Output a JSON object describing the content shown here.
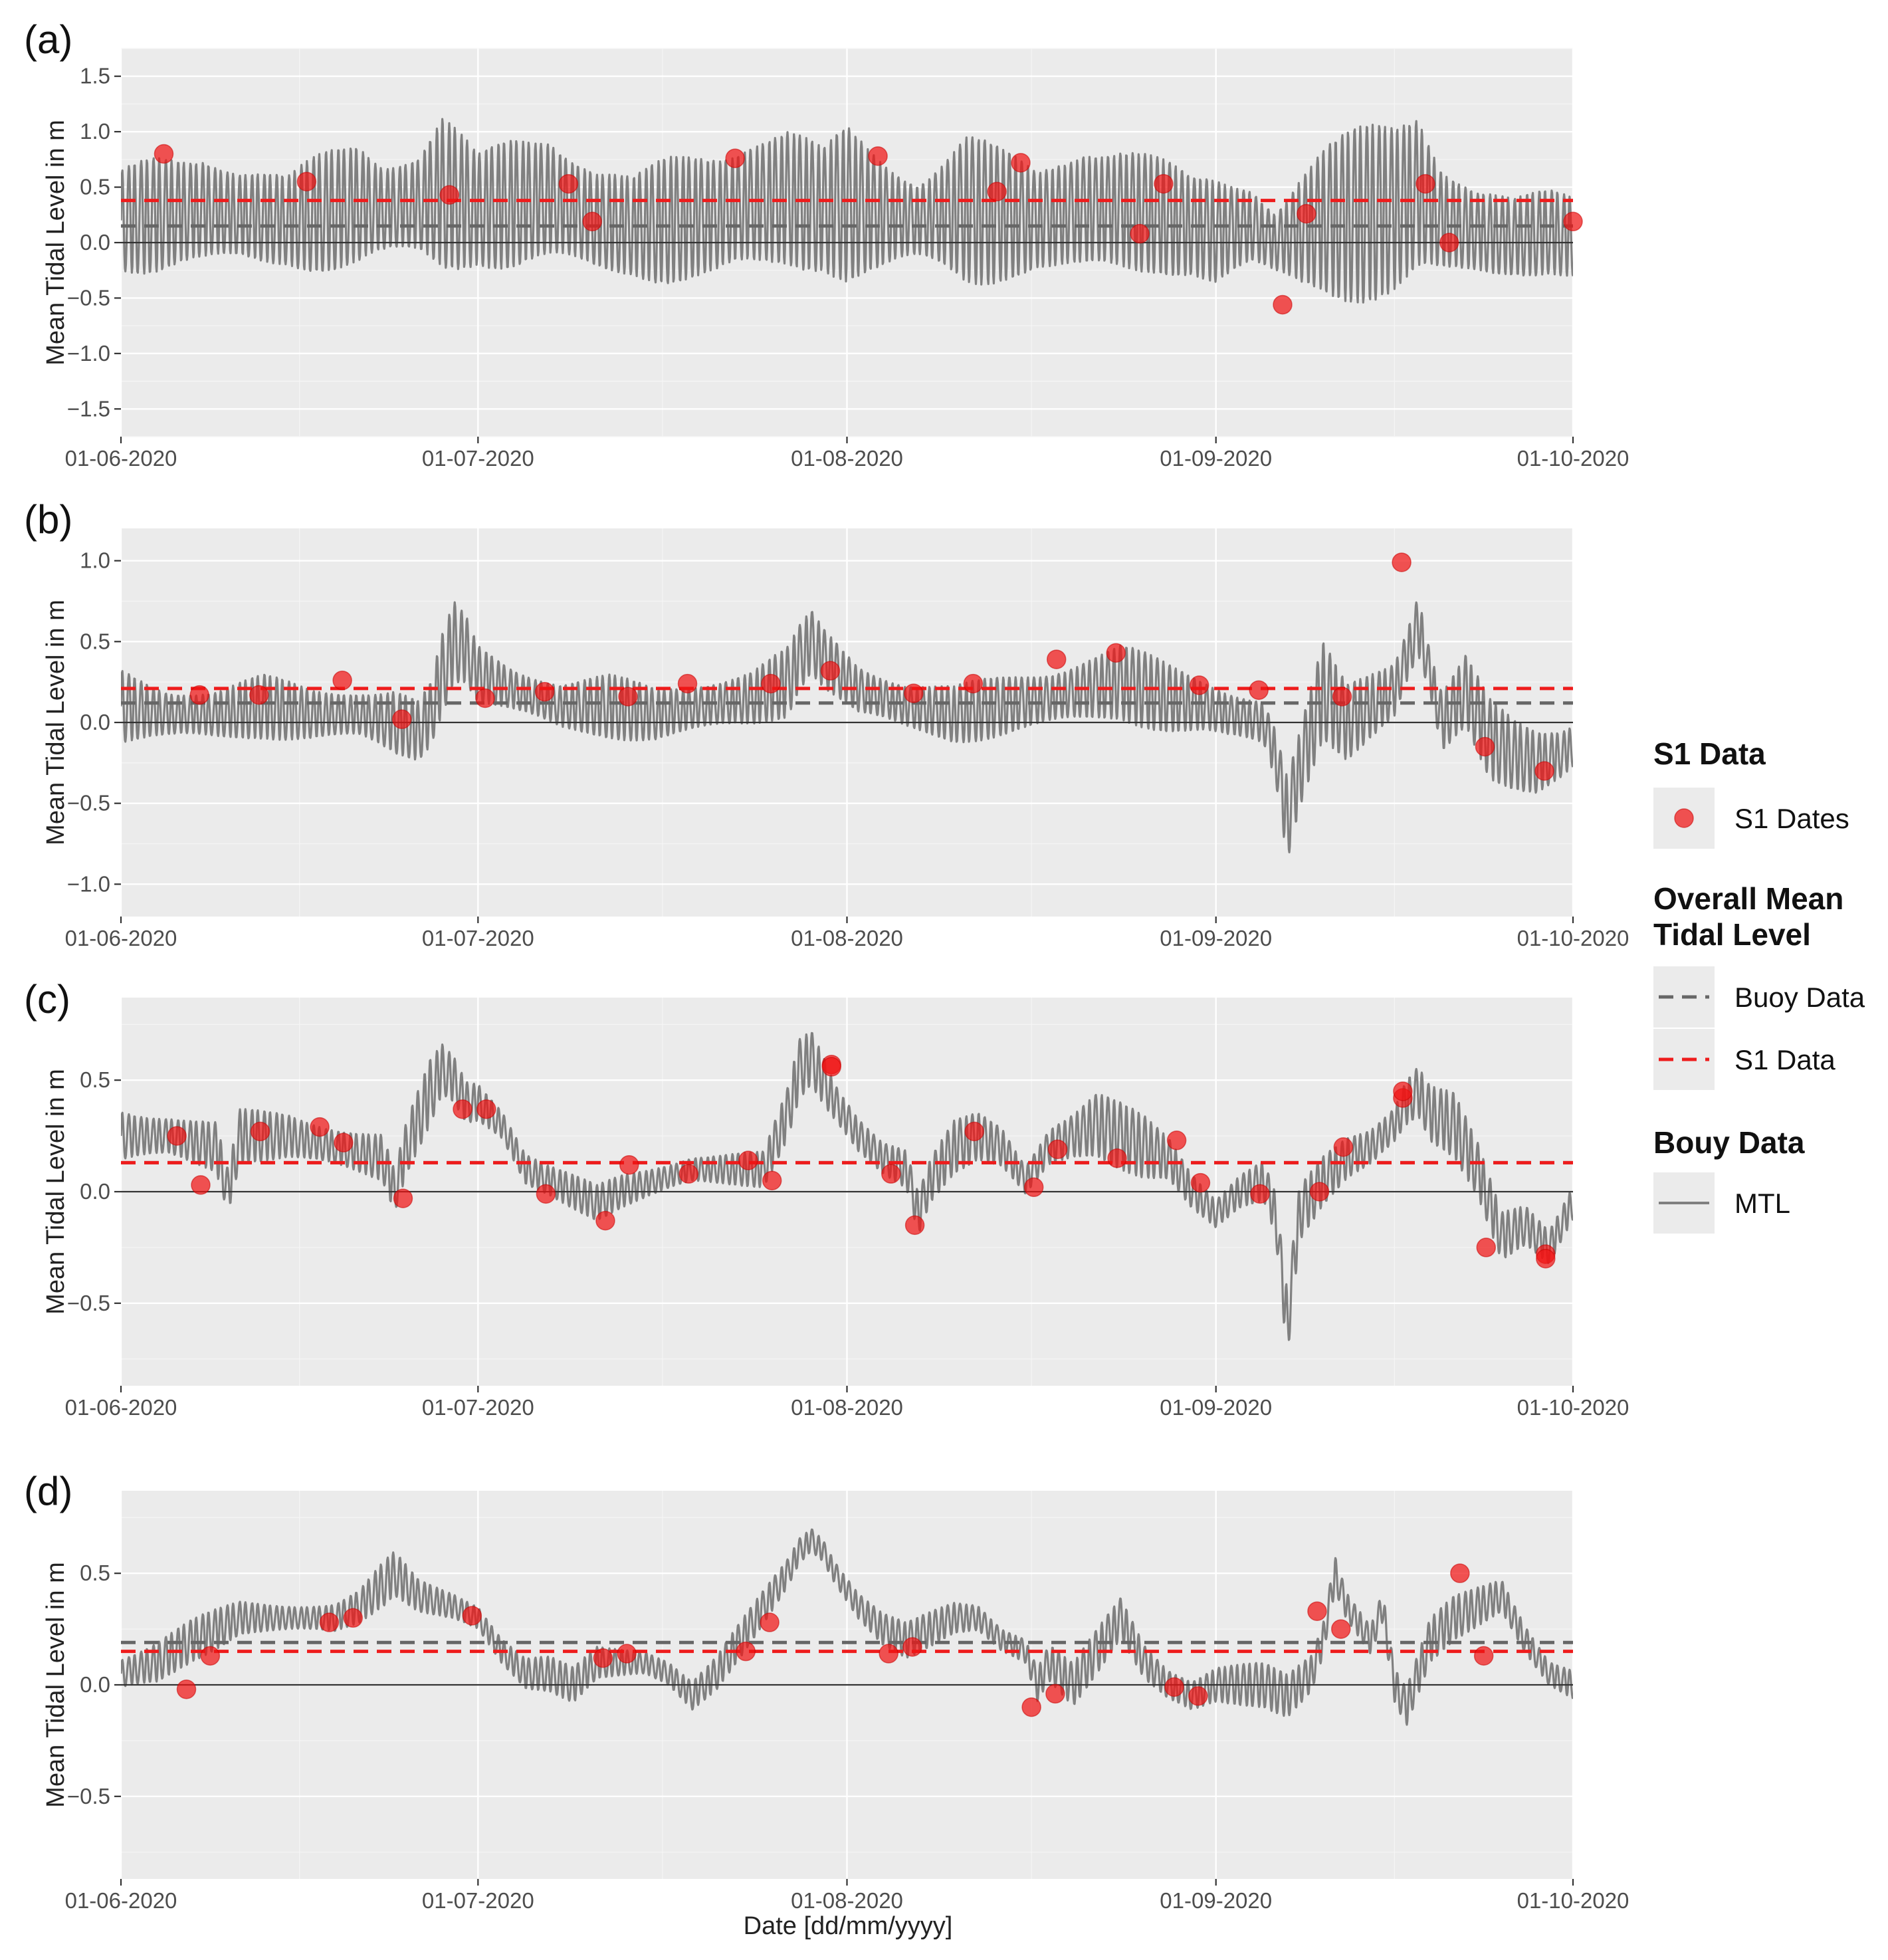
{
  "figure": {
    "x_axis_title": "Date [dd/mm/yyyy]",
    "y_axis_title": "Mean Tidal Level in m"
  },
  "legend": {
    "s1_data_title": "S1 Data",
    "s1_dates_label": "S1 Dates",
    "overall_title_line1": "Overall Mean",
    "overall_title_line2": "Tidal Level",
    "buoy_data_label": "Buoy Data",
    "s1_data_label": "S1 Data",
    "bouy_data_title": "Bouy Data",
    "mtl_label": "MTL"
  },
  "colors": {
    "mtl_line": "#808080",
    "buoy_mean": "#666666",
    "s1_mean": "#ee1c1c",
    "s1_points": "#f01414",
    "panel_background": "#ebebeb"
  },
  "chart_data": [
    {
      "panel": "(a)",
      "type": "line",
      "title": "",
      "xlabel": "",
      "ylabel": "Mean Tidal Level in m",
      "xlim": [
        0,
        122
      ],
      "x_tick_labels": [
        "01-06-2020",
        "01-07-2020",
        "01-08-2020",
        "01-09-2020",
        "01-10-2020"
      ],
      "x_tick_days": [
        0,
        30,
        61,
        92,
        122
      ],
      "ylim": [
        -1.75,
        1.75
      ],
      "y_ticks": [
        -1.5,
        -1.0,
        -0.5,
        0.0,
        0.5,
        1.0,
        1.5
      ],
      "y_tick_labels": [
        "−1.5",
        "−1.0",
        "−0.5",
        "0.0",
        "0.5",
        "1.0",
        "1.5"
      ],
      "buoy_overall_mean": 0.15,
      "s1_overall_mean": 0.38,
      "mtl_series": {
        "name": "MTL",
        "sampling": "hourly tidal signal reconstructed from envelope",
        "semidiurnal_period_days": 0.5175,
        "envelope": {
          "days": [
            0,
            3,
            7,
            10,
            14,
            18,
            20,
            22,
            25,
            27,
            30,
            33,
            36,
            40,
            43,
            46,
            50,
            53,
            56,
            59,
            61,
            64,
            67,
            71,
            74,
            77,
            81,
            84,
            87,
            90,
            92,
            95,
            97,
            99,
            101,
            104,
            107,
            109,
            111,
            114,
            117,
            120,
            122
          ],
          "mean": [
            0.2,
            0.25,
            0.3,
            0.25,
            0.2,
            0.3,
            0.35,
            0.3,
            0.35,
            0.45,
            0.3,
            0.35,
            0.4,
            0.2,
            0.15,
            0.2,
            0.25,
            0.35,
            0.4,
            0.3,
            0.35,
            0.25,
            0.2,
            0.3,
            0.25,
            0.2,
            0.3,
            0.3,
            0.25,
            0.15,
            0.1,
            0.15,
            0.0,
            0.1,
            0.2,
            0.25,
            0.3,
            0.45,
            0.2,
            0.1,
            0.05,
            0.1,
            0.05
          ],
          "amp": [
            0.45,
            0.6,
            0.7,
            0.5,
            0.4,
            0.65,
            0.75,
            0.6,
            0.55,
            0.75,
            0.5,
            0.7,
            0.8,
            0.55,
            0.45,
            0.6,
            0.75,
            0.8,
            0.7,
            0.55,
            0.75,
            0.65,
            0.5,
            0.75,
            0.6,
            0.5,
            0.8,
            0.7,
            0.55,
            0.45,
            0.55,
            0.5,
            0.4,
            0.6,
            0.7,
            0.8,
            0.9,
            1.0,
            0.7,
            0.45,
            0.35,
            0.4,
            0.45
          ]
        }
      },
      "s1_dates": {
        "name": "S1 Dates",
        "days": [
          3.6,
          15.6,
          27.6,
          37.6,
          39.6,
          51.6,
          63.6,
          73.6,
          75.6,
          85.6,
          87.6,
          97.6,
          99.6,
          109.6,
          111.6,
          122.0
        ],
        "values": [
          0.8,
          0.55,
          0.43,
          0.53,
          0.19,
          0.76,
          0.78,
          0.46,
          0.72,
          0.08,
          0.53,
          -0.56,
          0.26,
          0.53,
          0.0,
          0.19
        ]
      }
    },
    {
      "panel": "(b)",
      "type": "line",
      "title": "",
      "xlabel": "",
      "ylabel": "Mean Tidal Level in m",
      "xlim": [
        0,
        122
      ],
      "x_tick_labels": [
        "01-06-2020",
        "01-07-2020",
        "01-08-2020",
        "01-09-2020",
        "01-10-2020"
      ],
      "x_tick_days": [
        0,
        30,
        61,
        92,
        122
      ],
      "ylim": [
        -1.2,
        1.2
      ],
      "y_ticks": [
        -1.0,
        -0.5,
        0.0,
        0.5,
        1.0
      ],
      "y_tick_labels": [
        "−1.0",
        "−0.5",
        "0.0",
        "0.5",
        "1.0"
      ],
      "buoy_overall_mean": 0.12,
      "s1_overall_mean": 0.21,
      "mtl_series": {
        "name": "MTL",
        "semidiurnal_period_days": 0.5175,
        "envelope": {
          "days": [
            0,
            4,
            8,
            12,
            16,
            20,
            23,
            25,
            26,
            27,
            28,
            29,
            30,
            33,
            37,
            41,
            45,
            49,
            53,
            56,
            57,
            58,
            59,
            62,
            66,
            70,
            74,
            78,
            81,
            84,
            88,
            91,
            93,
            96,
            97,
            98,
            99,
            101,
            103,
            105,
            107,
            108,
            109,
            110,
            111,
            112,
            113,
            115,
            117,
            119,
            121,
            122
          ],
          "mean": [
            0.1,
            0.05,
            0.05,
            0.1,
            0.05,
            0.05,
            0.0,
            -0.05,
            0.05,
            0.3,
            0.5,
            0.45,
            0.3,
            0.2,
            0.1,
            0.1,
            0.05,
            0.1,
            0.15,
            0.25,
            0.4,
            0.5,
            0.4,
            0.2,
            0.1,
            0.05,
            0.1,
            0.15,
            0.2,
            0.25,
            0.15,
            0.1,
            0.05,
            0.0,
            -0.2,
            -0.6,
            -0.3,
            0.2,
            0.0,
            0.1,
            0.2,
            0.4,
            0.6,
            0.3,
            0.0,
            0.1,
            0.2,
            -0.1,
            -0.2,
            -0.25,
            -0.2,
            -0.15
          ],
          "amp": [
            0.25,
            0.2,
            0.18,
            0.2,
            0.18,
            0.2,
            0.25,
            0.2,
            0.2,
            0.25,
            0.25,
            0.22,
            0.2,
            0.18,
            0.18,
            0.2,
            0.18,
            0.2,
            0.2,
            0.22,
            0.2,
            0.2,
            0.2,
            0.2,
            0.18,
            0.18,
            0.2,
            0.22,
            0.25,
            0.25,
            0.22,
            0.2,
            0.2,
            0.18,
            0.2,
            0.3,
            0.25,
            0.3,
            0.25,
            0.25,
            0.25,
            0.25,
            0.3,
            0.2,
            0.25,
            0.25,
            0.25,
            0.25,
            0.22,
            0.22,
            0.2,
            0.2
          ]
        }
      },
      "s1_dates": {
        "name": "S1 Dates",
        "days": [
          6.6,
          11.6,
          18.6,
          23.6,
          30.6,
          35.6,
          42.6,
          47.6,
          54.6,
          59.6,
          66.6,
          71.6,
          78.6,
          83.6,
          90.6,
          95.6,
          102.6,
          107.6,
          114.6,
          119.6
        ],
        "values": [
          0.17,
          0.17,
          0.26,
          0.02,
          0.15,
          0.19,
          0.16,
          0.24,
          0.24,
          0.32,
          0.18,
          0.24,
          0.39,
          0.43,
          0.23,
          0.2,
          0.16,
          0.99,
          -0.15,
          -0.3
        ]
      }
    },
    {
      "panel": "(c)",
      "type": "line",
      "title": "",
      "xlabel": "",
      "ylabel": "Mean Tidal Level in m",
      "xlim": [
        0,
        122
      ],
      "x_tick_labels": [
        "01-06-2020",
        "01-07-2020",
        "01-08-2020",
        "01-09-2020",
        "01-10-2020"
      ],
      "x_tick_days": [
        0,
        30,
        61,
        92,
        122
      ],
      "ylim": [
        -0.87,
        0.87
      ],
      "y_ticks": [
        -0.5,
        0.0,
        0.5
      ],
      "y_tick_labels": [
        "−0.5",
        "0.0",
        "0.5"
      ],
      "buoy_overall_mean": 0.13,
      "s1_overall_mean": 0.13,
      "mtl_series": {
        "name": "MTL",
        "semidiurnal_period_days": 0.5175,
        "envelope": {
          "days": [
            0,
            4,
            8,
            9,
            10,
            14,
            18,
            22,
            23,
            24,
            26,
            27,
            28,
            29,
            30,
            32,
            34,
            36,
            38,
            40,
            42,
            45,
            48,
            51,
            54,
            56,
            57,
            58,
            59,
            60,
            62,
            64,
            66,
            67,
            68,
            70,
            72,
            74,
            76,
            78,
            80,
            82,
            84,
            86,
            88,
            90,
            92,
            94,
            96,
            97,
            98,
            99,
            101,
            103,
            105,
            107,
            108,
            109,
            110,
            112,
            114,
            116,
            118,
            120,
            122
          ],
          "mean": [
            0.25,
            0.25,
            0.2,
            0.0,
            0.25,
            0.25,
            0.2,
            0.15,
            0.0,
            0.2,
            0.45,
            0.55,
            0.5,
            0.4,
            0.4,
            0.3,
            0.1,
            0.05,
            0.0,
            -0.05,
            0.0,
            0.05,
            0.1,
            0.1,
            0.1,
            0.35,
            0.55,
            0.6,
            0.5,
            0.4,
            0.25,
            0.15,
            0.1,
            -0.1,
            0.05,
            0.2,
            0.25,
            0.2,
            0.05,
            0.2,
            0.25,
            0.3,
            0.25,
            0.2,
            0.15,
            0.0,
            -0.1,
            0.0,
            0.05,
            -0.1,
            -0.6,
            -0.1,
            0.05,
            0.15,
            0.2,
            0.3,
            0.4,
            0.45,
            0.35,
            0.3,
            0.1,
            -0.2,
            -0.15,
            -0.25,
            -0.05
          ],
          "amp": [
            0.15,
            0.12,
            0.12,
            0.1,
            0.12,
            0.12,
            0.12,
            0.12,
            0.1,
            0.12,
            0.15,
            0.12,
            0.12,
            0.12,
            0.12,
            0.1,
            0.1,
            0.08,
            0.08,
            0.08,
            0.08,
            0.08,
            0.08,
            0.08,
            0.08,
            0.12,
            0.15,
            0.15,
            0.15,
            0.12,
            0.12,
            0.1,
            0.1,
            0.1,
            0.1,
            0.12,
            0.12,
            0.12,
            0.1,
            0.12,
            0.12,
            0.15,
            0.15,
            0.15,
            0.12,
            0.12,
            0.1,
            0.1,
            0.1,
            0.1,
            0.15,
            0.12,
            0.12,
            0.12,
            0.12,
            0.12,
            0.15,
            0.15,
            0.15,
            0.15,
            0.12,
            0.12,
            0.12,
            0.12,
            0.12
          ]
        }
      },
      "s1_dates": {
        "name": "S1 Dates",
        "days": [
          4.7,
          6.7,
          11.7,
          16.7,
          18.7,
          23.7,
          28.7,
          30.7,
          35.7,
          40.7,
          42.7,
          47.7,
          52.7,
          54.7,
          59.7,
          59.7,
          64.7,
          66.7,
          71.7,
          76.7,
          78.7,
          83.7,
          88.7,
          90.7,
          95.7,
          100.7,
          102.7,
          107.7,
          107.7,
          114.7,
          119.7,
          119.7
        ],
        "values": [
          0.25,
          0.03,
          0.27,
          0.29,
          0.22,
          -0.03,
          0.37,
          0.37,
          -0.01,
          -0.13,
          0.12,
          0.08,
          0.14,
          0.05,
          0.57,
          0.56,
          0.08,
          -0.15,
          0.27,
          0.02,
          0.19,
          0.15,
          0.23,
          0.04,
          -0.01,
          0.0,
          0.2,
          0.42,
          0.45,
          -0.25,
          -0.28,
          -0.3
        ]
      }
    },
    {
      "panel": "(d)",
      "type": "line",
      "title": "",
      "xlabel": "Date [dd/mm/yyyy]",
      "ylabel": "Mean Tidal Level in m",
      "xlim": [
        0,
        122
      ],
      "x_tick_labels": [
        "01-06-2020",
        "01-07-2020",
        "01-08-2020",
        "01-09-2020",
        "01-10-2020"
      ],
      "x_tick_days": [
        0,
        30,
        61,
        92,
        122
      ],
      "ylim": [
        -0.87,
        0.87
      ],
      "y_ticks": [
        -0.5,
        0.0,
        0.5
      ],
      "y_tick_labels": [
        "−0.5",
        "0.0",
        "0.5"
      ],
      "buoy_overall_mean": 0.19,
      "s1_overall_mean": 0.15,
      "mtl_series": {
        "name": "MTL",
        "semidiurnal_period_days": 0.5175,
        "envelope": {
          "days": [
            0,
            3,
            6,
            10,
            14,
            18,
            20,
            22,
            23,
            25,
            28,
            30,
            32,
            34,
            36,
            38,
            40,
            42,
            44,
            46,
            48,
            50,
            52,
            54,
            56,
            57,
            58,
            59,
            60,
            62,
            64,
            66,
            68,
            70,
            72,
            74,
            76,
            77,
            78,
            80,
            82,
            84,
            86,
            88,
            90,
            92,
            94,
            96,
            98,
            100,
            101,
            102,
            103,
            105,
            106,
            107,
            108,
            110,
            112,
            114,
            116,
            118,
            120,
            122
          ],
          "mean": [
            0.05,
            0.1,
            0.2,
            0.3,
            0.3,
            0.3,
            0.35,
            0.45,
            0.5,
            0.4,
            0.35,
            0.3,
            0.15,
            0.05,
            0.05,
            0.0,
            0.1,
            0.1,
            0.1,
            0.05,
            -0.05,
            0.05,
            0.2,
            0.35,
            0.5,
            0.6,
            0.65,
            0.6,
            0.5,
            0.35,
            0.25,
            0.2,
            0.25,
            0.3,
            0.3,
            0.2,
            0.15,
            0.0,
            0.1,
            0.0,
            0.15,
            0.3,
            0.1,
            0.0,
            -0.05,
            0.0,
            0.0,
            0.0,
            -0.05,
            0.05,
            0.2,
            0.5,
            0.35,
            0.2,
            0.35,
            0.0,
            -0.1,
            0.2,
            0.3,
            0.35,
            0.4,
            0.2,
            0.05,
            0.0
          ],
          "amp": [
            0.1,
            0.12,
            0.1,
            0.08,
            0.08,
            0.08,
            0.08,
            0.1,
            0.1,
            0.08,
            0.08,
            0.08,
            0.08,
            0.08,
            0.08,
            0.08,
            0.08,
            0.08,
            0.08,
            0.08,
            0.08,
            0.08,
            0.08,
            0.08,
            0.08,
            0.08,
            0.08,
            0.08,
            0.08,
            0.08,
            0.08,
            0.08,
            0.08,
            0.08,
            0.08,
            0.08,
            0.08,
            0.1,
            0.1,
            0.1,
            0.1,
            0.1,
            0.1,
            0.1,
            0.1,
            0.1,
            0.1,
            0.1,
            0.1,
            0.1,
            0.1,
            0.12,
            0.1,
            0.1,
            0.1,
            0.1,
            0.1,
            0.1,
            0.1,
            0.1,
            0.1,
            0.1,
            0.08,
            0.08
          ]
        }
      },
      "s1_dates": {
        "name": "S1 Dates",
        "days": [
          5.5,
          7.5,
          17.5,
          19.5,
          29.5,
          40.5,
          42.5,
          52.5,
          54.5,
          64.5,
          66.5,
          76.5,
          78.5,
          88.5,
          90.5,
          100.5,
          102.5,
          112.5,
          114.5
        ],
        "values": [
          -0.02,
          0.13,
          0.28,
          0.3,
          0.31,
          0.12,
          0.14,
          0.15,
          0.28,
          0.14,
          0.17,
          -0.1,
          -0.04,
          -0.01,
          -0.05,
          0.33,
          0.25,
          0.5,
          0.13
        ]
      }
    }
  ]
}
